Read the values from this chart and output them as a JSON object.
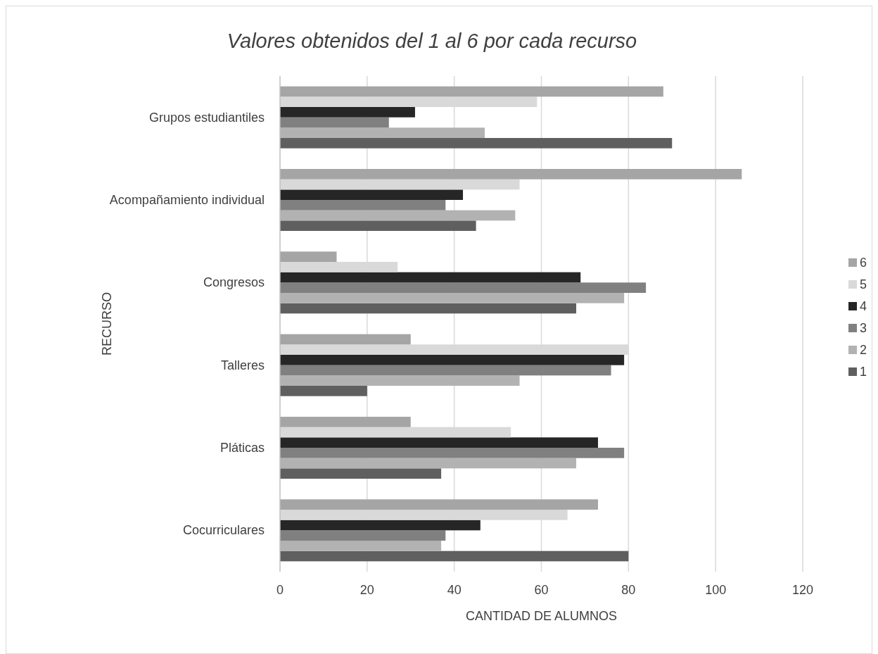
{
  "chart_data": {
    "type": "bar",
    "orientation": "horizontal",
    "title": "Valores obtenidos del 1 al 6 por cada recurso",
    "xlabel": "CANTIDAD DE ALUMNOS",
    "ylabel": "RECURSO",
    "categories": [
      "Grupos estudiantiles",
      "Acompañamiento individual",
      "Congresos",
      "Talleres",
      "Pláticas",
      "Cocurriculares"
    ],
    "series": [
      {
        "name": "1",
        "color": "#5f5f5f",
        "values": [
          90,
          45,
          68,
          20,
          37,
          80
        ]
      },
      {
        "name": "2",
        "color": "#b2b2b2",
        "values": [
          47,
          54,
          79,
          55,
          68,
          37
        ]
      },
      {
        "name": "3",
        "color": "#808080",
        "values": [
          25,
          38,
          84,
          76,
          79,
          38
        ]
      },
      {
        "name": "4",
        "color": "#262626",
        "values": [
          31,
          42,
          69,
          79,
          73,
          46
        ]
      },
      {
        "name": "5",
        "color": "#d9d9d9",
        "values": [
          59,
          55,
          27,
          80,
          53,
          66
        ]
      },
      {
        "name": "6",
        "color": "#a5a5a5",
        "values": [
          88,
          106,
          13,
          30,
          30,
          73
        ]
      }
    ],
    "xlim": [
      0,
      120
    ],
    "xticks": [
      0,
      20,
      40,
      60,
      80,
      100,
      120
    ],
    "grid": "x",
    "legend": "right"
  }
}
